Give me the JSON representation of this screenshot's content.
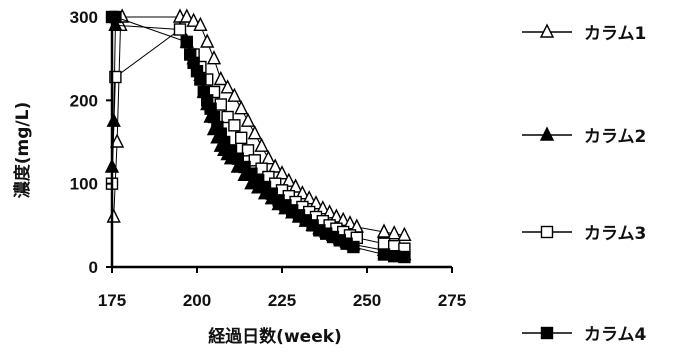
{
  "chart_data": {
    "type": "scatter",
    "xlabel": "経過日数(week)",
    "ylabel": "濃度(mg/L)",
    "xlim": [
      175,
      275
    ],
    "ylim": [
      0,
      300
    ],
    "xticks": [
      "175",
      "200",
      "225",
      "250",
      "275"
    ],
    "yticks": [
      "0",
      "100",
      "200",
      "300"
    ],
    "grid": false,
    "legend_position": "right",
    "series": [
      {
        "name": "カラム1",
        "marker": "triangle-open",
        "x": [
          175.5,
          176.5,
          177.5,
          178,
          195,
          197,
          199,
          201,
          203,
          205,
          207,
          209,
          211,
          213,
          215,
          217,
          219,
          221,
          223,
          225,
          227,
          229,
          231,
          233,
          235,
          237,
          239,
          241,
          243,
          245,
          247,
          255,
          258,
          261
        ],
        "y": [
          60,
          150,
          290,
          300,
          300,
          300,
          295,
          290,
          270,
          250,
          225,
          215,
          205,
          190,
          175,
          160,
          145,
          130,
          120,
          112,
          103,
          96,
          88,
          82,
          76,
          70,
          65,
          60,
          56,
          52,
          48,
          42,
          40,
          38
        ]
      },
      {
        "name": "カラム2",
        "marker": "triangle-filled",
        "x": [
          175,
          175.5,
          176,
          195,
          197,
          199,
          201,
          202,
          203,
          204,
          205,
          206,
          207,
          208,
          209,
          210,
          212,
          214,
          216,
          218,
          220,
          222,
          224,
          226,
          228,
          230,
          232,
          234,
          236,
          238,
          240,
          242,
          244,
          246,
          255,
          258,
          261
        ],
        "y": [
          120,
          175,
          290,
          285,
          270,
          250,
          230,
          210,
          195,
          180,
          165,
          155,
          145,
          140,
          135,
          130,
          120,
          110,
          100,
          95,
          88,
          82,
          75,
          70,
          65,
          60,
          55,
          50,
          46,
          42,
          38,
          34,
          30,
          27,
          20,
          18,
          15
        ]
      },
      {
        "name": "カラム3",
        "marker": "square-open",
        "x": [
          175,
          176,
          195,
          197,
          199,
          201,
          203,
          205,
          207,
          209,
          211,
          213,
          215,
          217,
          219,
          221,
          223,
          225,
          227,
          229,
          231,
          233,
          235,
          237,
          239,
          241,
          243,
          245,
          247,
          255,
          258,
          261
        ],
        "y": [
          100,
          228,
          285,
          270,
          255,
          240,
          225,
          210,
          195,
          180,
          170,
          155,
          140,
          128,
          118,
          108,
          100,
          92,
          85,
          78,
          72,
          66,
          60,
          55,
          50,
          46,
          42,
          38,
          35,
          28,
          25,
          22
        ]
      },
      {
        "name": "カラム4",
        "marker": "square-filled",
        "x": [
          175,
          176,
          197,
          198,
          199,
          200,
          201,
          202,
          203,
          204,
          205,
          206,
          207,
          208,
          210,
          212,
          214,
          216,
          218,
          220,
          222,
          224,
          226,
          228,
          230,
          232,
          234,
          236,
          238,
          240,
          242,
          244,
          246,
          255,
          258,
          261
        ],
        "y": [
          300,
          300,
          270,
          255,
          245,
          235,
          225,
          210,
          200,
          190,
          180,
          168,
          160,
          150,
          140,
          130,
          120,
          112,
          104,
          96,
          88,
          80,
          74,
          68,
          62,
          56,
          50,
          44,
          40,
          36,
          32,
          28,
          24,
          15,
          13,
          12
        ]
      }
    ]
  }
}
